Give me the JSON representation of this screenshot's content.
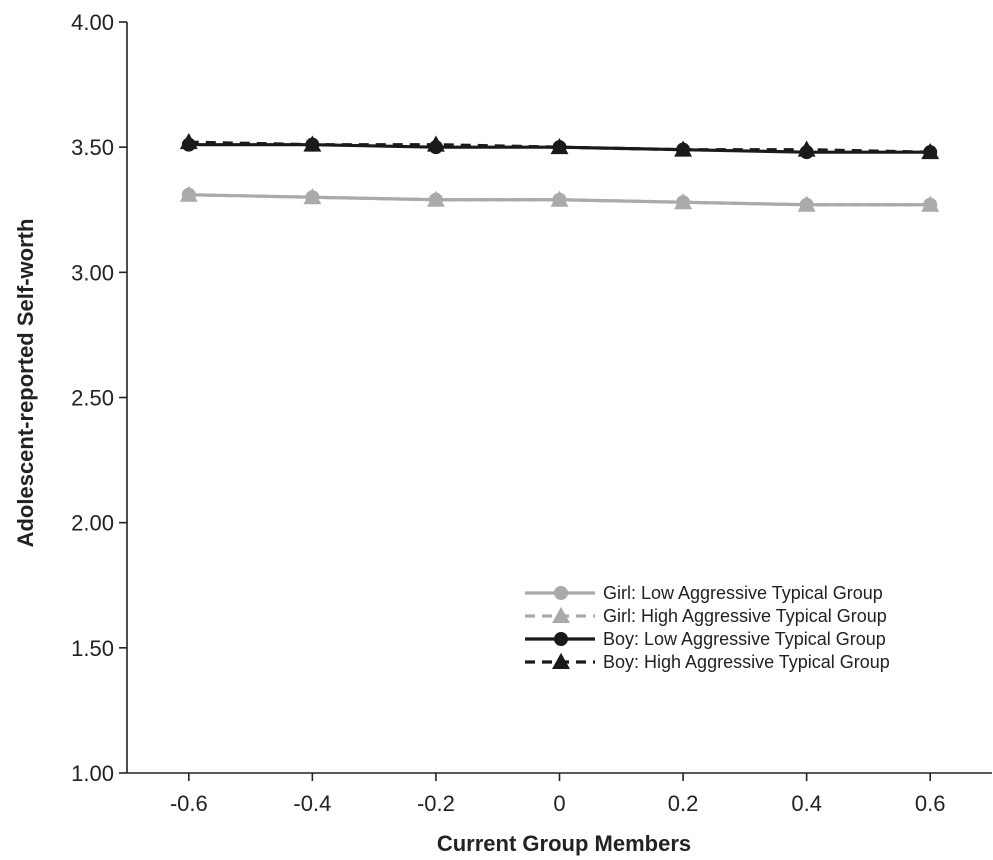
{
  "chart_data": {
    "type": "line",
    "title": "",
    "xlabel": "Current Group Members",
    "ylabel": "Adolescent-reported Self-worth",
    "xlim": [
      -0.7,
      0.7
    ],
    "ylim": [
      1.0,
      4.0
    ],
    "x": [
      -0.6,
      -0.4,
      -0.2,
      0,
      0.2,
      0.4,
      0.6
    ],
    "x_tick_labels": [
      "-0.6",
      "-0.4",
      "-0.2",
      "0",
      "0.2",
      "0.4",
      "0.6"
    ],
    "y_ticks": [
      1.0,
      1.5,
      2.0,
      2.5,
      3.0,
      3.5,
      4.0
    ],
    "y_tick_labels": [
      "1.00",
      "1.50",
      "2.00",
      "2.50",
      "3.00",
      "3.50",
      "4.00"
    ],
    "grid": false,
    "legend_position": "bottom-right",
    "series": [
      {
        "name": "Girl: Low Aggressive Typical Group",
        "values": [
          3.31,
          3.3,
          3.29,
          3.29,
          3.28,
          3.27,
          3.27
        ],
        "color": "#aaaaaa",
        "dash": "solid",
        "marker": "circle"
      },
      {
        "name": "Girl: High Aggressive Typical Group",
        "values": [
          3.31,
          3.3,
          3.29,
          3.29,
          3.28,
          3.27,
          3.27
        ],
        "color": "#aaaaaa",
        "dash": "dashed",
        "marker": "triangle"
      },
      {
        "name": "Boy: Low Aggressive Typical Group",
        "values": [
          3.51,
          3.51,
          3.5,
          3.5,
          3.49,
          3.48,
          3.48
        ],
        "color": "#1a1a1a",
        "dash": "solid",
        "marker": "circle"
      },
      {
        "name": "Boy: High Aggressive Typical Group",
        "values": [
          3.52,
          3.51,
          3.51,
          3.5,
          3.49,
          3.49,
          3.48
        ],
        "color": "#1a1a1a",
        "dash": "dashed",
        "marker": "triangle"
      }
    ]
  }
}
